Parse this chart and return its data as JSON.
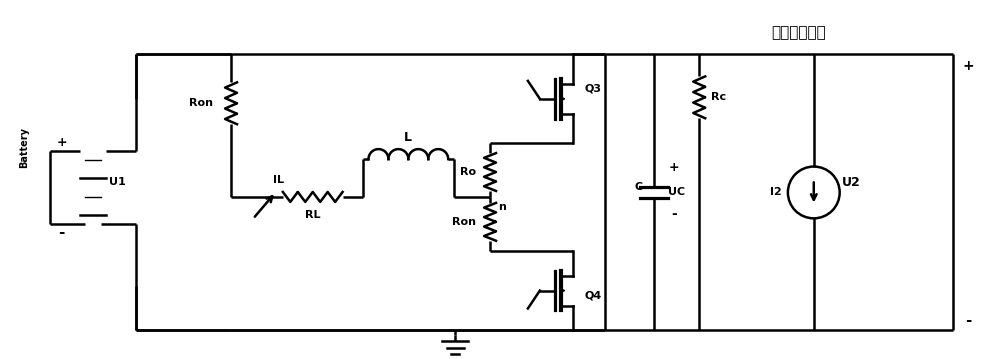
{
  "title": "直流母线电压",
  "background_color": "#ffffff",
  "line_color": "#000000",
  "line_width": 1.8,
  "figsize": [
    10.0,
    3.59
  ],
  "dpi": 100,
  "labels": {
    "battery": "Battery",
    "u1": "U1",
    "ron1": "Ron",
    "il": "IL",
    "rl": "RL",
    "l": "L",
    "ro": "Ro",
    "n": "n",
    "ron2": "Ron",
    "q3": "Q3",
    "q4": "Q4",
    "rc": "Rc",
    "c": "C",
    "uc": "UC",
    "i2": "I2",
    "u2": "U2",
    "plus1": "+",
    "minus1": "-",
    "plus2": "+",
    "minus2": "-",
    "plus3": "+",
    "minus3": "-"
  }
}
